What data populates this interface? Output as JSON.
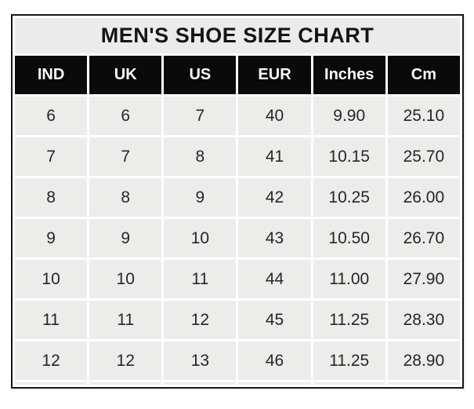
{
  "page": {
    "title": "MEN'S SHOE SIZE CHART"
  },
  "table": {
    "headers": [
      "IND",
      "UK",
      "US",
      "EUR",
      "Inches",
      "Cm"
    ],
    "rows": [
      [
        "6",
        "6",
        "7",
        "40",
        "9.90",
        "25.10"
      ],
      [
        "7",
        "7",
        "8",
        "41",
        "10.15",
        "25.70"
      ],
      [
        "8",
        "8",
        "9",
        "42",
        "10.25",
        "26.00"
      ],
      [
        "9",
        "9",
        "10",
        "43",
        "10.50",
        "26.70"
      ],
      [
        "10",
        "10",
        "11",
        "44",
        "11.00",
        "27.90"
      ],
      [
        "11",
        "11",
        "12",
        "45",
        "11.25",
        "28.30"
      ],
      [
        "12",
        "12",
        "13",
        "46",
        "11.25",
        "28.90"
      ]
    ]
  },
  "colors": {
    "title_bg": "#ebebeb",
    "header_bg": "#0a0a0a",
    "header_text": "#fbfbfb",
    "cell_bg": "#ececeb",
    "cell_text": "#262626",
    "grid_separator": "#ffffff",
    "outer_border": "#161616",
    "page_bg": "#ffffff"
  },
  "chart_data": {
    "type": "table",
    "title": "MEN'S SHOE SIZE CHART",
    "columns": [
      "IND",
      "UK",
      "US",
      "EUR",
      "Inches",
      "Cm"
    ],
    "rows": [
      [
        6,
        6,
        7,
        40,
        9.9,
        25.1
      ],
      [
        7,
        7,
        8,
        41,
        10.15,
        25.7
      ],
      [
        8,
        8,
        9,
        42,
        10.25,
        26.0
      ],
      [
        9,
        9,
        10,
        43,
        10.5,
        26.7
      ],
      [
        10,
        10,
        11,
        44,
        11.0,
        27.9
      ],
      [
        11,
        11,
        12,
        45,
        11.25,
        28.3
      ],
      [
        12,
        12,
        13,
        46,
        11.25,
        28.9
      ]
    ]
  }
}
